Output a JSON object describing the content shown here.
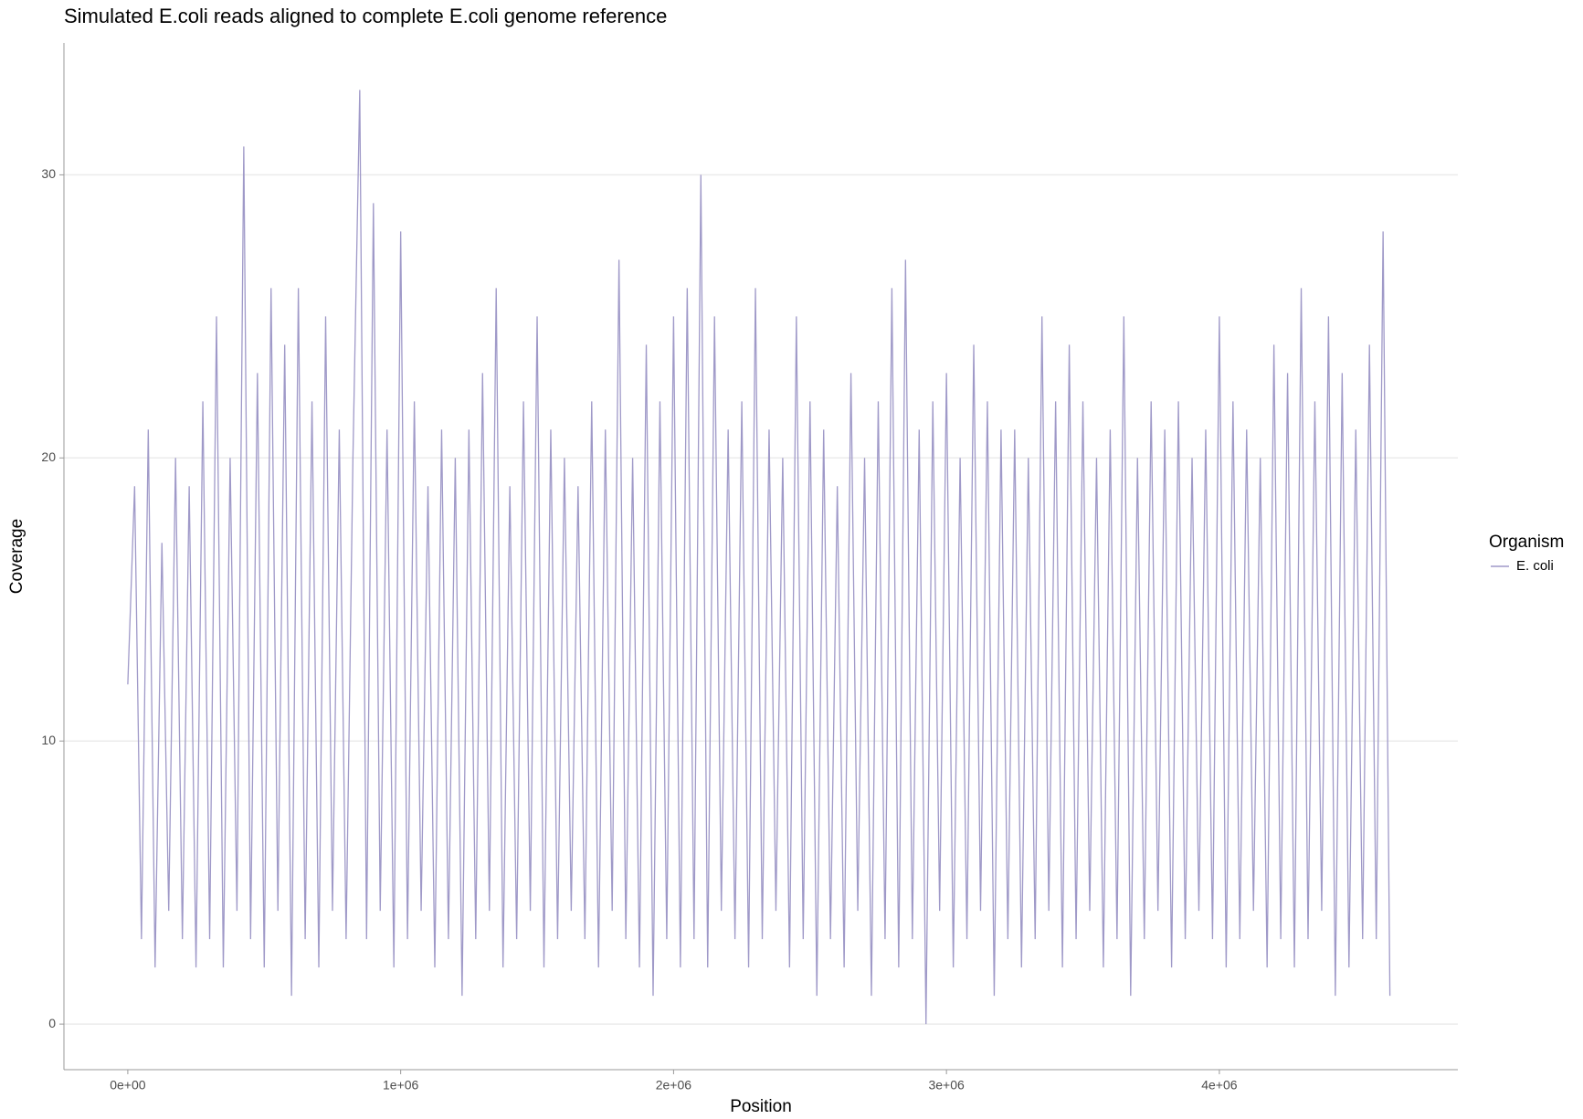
{
  "chart_data": {
    "type": "line",
    "title": "Simulated E.coli reads aligned to complete E.coli genome reference",
    "x_label": "Position",
    "y_label": "Coverage",
    "legend_title": "Organism",
    "xlim": [
      -234000,
      4874000
    ],
    "ylim": [
      -1.61,
      34.66
    ],
    "xticks": [
      {
        "value": 0,
        "label": "0e+00"
      },
      {
        "value": 1000000,
        "label": "1e+06"
      },
      {
        "value": 2000000,
        "label": "2e+06"
      },
      {
        "value": 3000000,
        "label": "3e+06"
      },
      {
        "value": 4000000,
        "label": "4e+06"
      }
    ],
    "yticks": [
      0,
      10,
      20,
      30
    ],
    "grid": true,
    "legend": "right",
    "x": [
      0,
      25000,
      50000,
      75000,
      100000,
      125000,
      150000,
      175000,
      200000,
      225000,
      250000,
      275000,
      300000,
      325000,
      350000,
      375000,
      400000,
      425000,
      450000,
      475000,
      500000,
      525000,
      550000,
      575000,
      600000,
      625000,
      650000,
      675000,
      700000,
      725000,
      750000,
      775000,
      800000,
      825000,
      850000,
      875000,
      900000,
      925000,
      950000,
      975000,
      1000000,
      1025000,
      1050000,
      1075000,
      1100000,
      1125000,
      1150000,
      1175000,
      1200000,
      1225000,
      1250000,
      1275000,
      1300000,
      1325000,
      1350000,
      1375000,
      1400000,
      1425000,
      1450000,
      1475000,
      1500000,
      1525000,
      1550000,
      1575000,
      1600000,
      1625000,
      1650000,
      1675000,
      1700000,
      1725000,
      1750000,
      1775000,
      1800000,
      1825000,
      1850000,
      1875000,
      1900000,
      1925000,
      1950000,
      1975000,
      2000000,
      2025000,
      2050000,
      2075000,
      2100000,
      2125000,
      2150000,
      2175000,
      2200000,
      2225000,
      2250000,
      2275000,
      2300000,
      2325000,
      2350000,
      2375000,
      2400000,
      2425000,
      2450000,
      2475000,
      2500000,
      2525000,
      2550000,
      2575000,
      2600000,
      2625000,
      2650000,
      2675000,
      2700000,
      2725000,
      2750000,
      2775000,
      2800000,
      2825000,
      2850000,
      2875000,
      2900000,
      2925000,
      2950000,
      2975000,
      3000000,
      3025000,
      3050000,
      3075000,
      3100000,
      3125000,
      3150000,
      3175000,
      3200000,
      3225000,
      3250000,
      3275000,
      3300000,
      3325000,
      3350000,
      3375000,
      3400000,
      3425000,
      3450000,
      3475000,
      3500000,
      3525000,
      3550000,
      3575000,
      3600000,
      3625000,
      3650000,
      3675000,
      3700000,
      3725000,
      3750000,
      3775000,
      3800000,
      3825000,
      3850000,
      3875000,
      3900000,
      3925000,
      3950000,
      3975000,
      4000000,
      4025000,
      4050000,
      4075000,
      4100000,
      4125000,
      4150000,
      4175000,
      4200000,
      4225000,
      4250000,
      4275000,
      4300000,
      4325000,
      4350000,
      4375000,
      4400000,
      4425000,
      4450000,
      4475000,
      4500000,
      4525000,
      4550000,
      4575000,
      4600000,
      4625000
    ],
    "series": [
      {
        "name": "E. coli",
        "color": "#9f99c8",
        "values": [
          12,
          19,
          3,
          21,
          2,
          17,
          4,
          20,
          3,
          19,
          2,
          22,
          3,
          25,
          2,
          20,
          4,
          31,
          3,
          23,
          2,
          26,
          4,
          24,
          1,
          26,
          3,
          22,
          2,
          25,
          4,
          21,
          3,
          20,
          33,
          3,
          29,
          4,
          21,
          2,
          28,
          3,
          22,
          4,
          19,
          2,
          21,
          3,
          20,
          1,
          21,
          3,
          23,
          4,
          26,
          2,
          19,
          3,
          22,
          4,
          25,
          2,
          21,
          3,
          20,
          4,
          19,
          3,
          22,
          2,
          21,
          4,
          27,
          3,
          20,
          2,
          24,
          1,
          22,
          3,
          25,
          2,
          26,
          3,
          30,
          2,
          25,
          4,
          21,
          3,
          22,
          2,
          26,
          3,
          21,
          4,
          20,
          2,
          25,
          3,
          22,
          1,
          21,
          3,
          19,
          2,
          23,
          4,
          20,
          1,
          22,
          3,
          26,
          2,
          27,
          3,
          21,
          0,
          22,
          4,
          23,
          2,
          20,
          3,
          24,
          4,
          22,
          1,
          21,
          3,
          21,
          2,
          20,
          3,
          25,
          4,
          22,
          2,
          24,
          3,
          22,
          4,
          20,
          2,
          21,
          3,
          25,
          1,
          20,
          3,
          22,
          4,
          21,
          2,
          22,
          3,
          20,
          4,
          21,
          3,
          25,
          2,
          22,
          3,
          21,
          4,
          20,
          2,
          24,
          3,
          23,
          2,
          26,
          3,
          22,
          4,
          25,
          1,
          23,
          2,
          21,
          3,
          24,
          3,
          28,
          1
        ]
      }
    ]
  }
}
